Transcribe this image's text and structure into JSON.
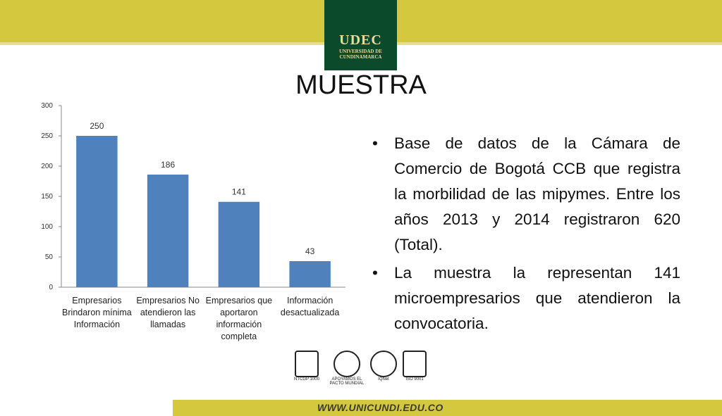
{
  "header": {
    "logo_name": "UDEC",
    "logo_line1": "UNIVERSIDAD DE",
    "logo_line2": "CUNDINAMARCA"
  },
  "title": "MUESTRA",
  "chart_data": {
    "type": "bar",
    "categories": [
      "Empresarios Brindaron mínima Información",
      "Empresarios No atendieron las llamadas",
      "Empresarios que aportaron información completa",
      "Información desactualizada"
    ],
    "values": [
      250,
      186,
      141,
      43
    ],
    "color": "#4f81bd",
    "ylim": [
      0,
      300
    ],
    "yticks": [
      0,
      50,
      100,
      150,
      200,
      250,
      300
    ],
    "grid": false
  },
  "bullets": [
    "Base de datos de la Cámara de Comercio de Bogotá CCB que registra la morbilidad de las mipymes. Entre los años 2013 y 2014 registraron 620 (Total).",
    "La muestra la representan 141 microempresarios que atendieron la convocatoria."
  ],
  "seals": [
    "NTCGP 1000",
    "APOYAMOS EL PACTO MUNDIAL",
    "IQNet",
    "ISO 9001"
  ],
  "footer": {
    "url": "WWW.UNICUNDI.EDU.CO"
  }
}
